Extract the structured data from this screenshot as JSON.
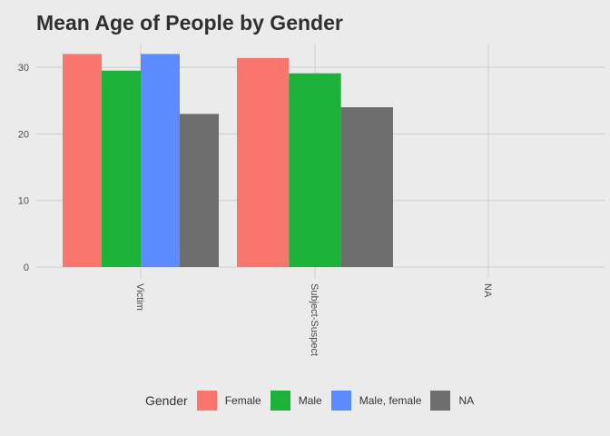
{
  "chart_data": {
    "type": "bar",
    "title": "Mean Age of People by Gender",
    "xlabel": "",
    "ylabel": "",
    "categories": [
      "Victim",
      "Subject-Suspect",
      "NA"
    ],
    "ylim": [
      0,
      34
    ],
    "yticks": [
      0,
      10,
      20,
      30
    ],
    "grid": true,
    "legend": {
      "title": "Gender",
      "position": "bottom"
    },
    "series": [
      {
        "name": "Female",
        "color": "#f8766d",
        "values": [
          32,
          31.4,
          null
        ]
      },
      {
        "name": "Male",
        "color": "#1db33a",
        "values": [
          29.5,
          29.1,
          null
        ]
      },
      {
        "name": "Male, female",
        "color": "#5b8bff",
        "values": [
          32,
          null,
          null
        ]
      },
      {
        "name": "NA",
        "color": "#6e6e6e",
        "values": [
          23,
          24,
          null
        ]
      }
    ]
  }
}
